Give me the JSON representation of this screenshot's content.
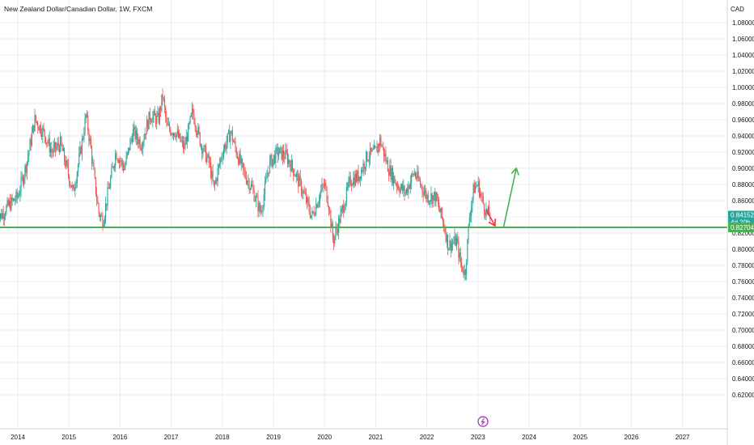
{
  "header": {
    "title": "New Zealand Dollar/Canadian Dollar, 1W, FXCM"
  },
  "chart_data": {
    "type": "candlestick",
    "title": "New Zealand Dollar/Canadian Dollar, 1W, FXCM",
    "y_unit": "CAD",
    "ylim": [
      0.61,
      1.09
    ],
    "y_ticks": [
      "1.08000",
      "1.06000",
      "1.04000",
      "1.02000",
      "1.00000",
      "0.98000",
      "0.96000",
      "0.94000",
      "0.92000",
      "0.90000",
      "0.88000",
      "0.86000",
      "0.84000",
      "0.82000",
      "0.80000",
      "0.78000",
      "0.76000",
      "0.74000",
      "0.72000",
      "0.70000",
      "0.68000",
      "0.66000",
      "0.64000",
      "0.62000"
    ],
    "x_ticks": [
      "2014",
      "2015",
      "2016",
      "2017",
      "2018",
      "2019",
      "2020",
      "2021",
      "2022",
      "2023",
      "2024",
      "2025",
      "2026",
      "2027"
    ],
    "grid": true,
    "price_series": [
      [
        "2013-08",
        0.835
      ],
      [
        "2013-11",
        0.855
      ],
      [
        "2014-01",
        0.865
      ],
      [
        "2014-03",
        0.905
      ],
      [
        "2014-05",
        0.96
      ],
      [
        "2014-07",
        0.945
      ],
      [
        "2014-09",
        0.92
      ],
      [
        "2014-11",
        0.93
      ],
      [
        "2015-01",
        0.89
      ],
      [
        "2015-02",
        0.87
      ],
      [
        "2015-03",
        0.9
      ],
      [
        "2015-04",
        0.93
      ],
      [
        "2015-05",
        0.965
      ],
      [
        "2015-06",
        0.93
      ],
      [
        "2015-07",
        0.885
      ],
      [
        "2015-08",
        0.845
      ],
      [
        "2015-09",
        0.835
      ],
      [
        "2015-10",
        0.865
      ],
      [
        "2015-12",
        0.92
      ],
      [
        "2016-02",
        0.9
      ],
      [
        "2016-04",
        0.945
      ],
      [
        "2016-06",
        0.93
      ],
      [
        "2016-08",
        0.965
      ],
      [
        "2016-10",
        0.96
      ],
      [
        "2016-11",
        0.99
      ],
      [
        "2016-12",
        0.95
      ],
      [
        "2017-02",
        0.945
      ],
      [
        "2017-04",
        0.925
      ],
      [
        "2017-05",
        0.945
      ],
      [
        "2017-06",
        0.97
      ],
      [
        "2017-08",
        0.93
      ],
      [
        "2017-10",
        0.905
      ],
      [
        "2017-11",
        0.875
      ],
      [
        "2018-01",
        0.92
      ],
      [
        "2018-03",
        0.945
      ],
      [
        "2018-04",
        0.925
      ],
      [
        "2018-06",
        0.895
      ],
      [
        "2018-08",
        0.875
      ],
      [
        "2018-09",
        0.86
      ],
      [
        "2018-10",
        0.845
      ],
      [
        "2018-12",
        0.905
      ],
      [
        "2019-02",
        0.92
      ],
      [
        "2019-04",
        0.915
      ],
      [
        "2019-06",
        0.895
      ],
      [
        "2019-08",
        0.87
      ],
      [
        "2019-09",
        0.855
      ],
      [
        "2019-10",
        0.84
      ],
      [
        "2019-12",
        0.87
      ],
      [
        "2020-01",
        0.88
      ],
      [
        "2020-02",
        0.855
      ],
      [
        "2020-03",
        0.81
      ],
      [
        "2020-05",
        0.845
      ],
      [
        "2020-07",
        0.885
      ],
      [
        "2020-09",
        0.89
      ],
      [
        "2020-11",
        0.915
      ],
      [
        "2021-01",
        0.92
      ],
      [
        "2021-02",
        0.935
      ],
      [
        "2021-04",
        0.9
      ],
      [
        "2021-06",
        0.88
      ],
      [
        "2021-08",
        0.87
      ],
      [
        "2021-10",
        0.895
      ],
      [
        "2021-12",
        0.875
      ],
      [
        "2022-01",
        0.865
      ],
      [
        "2022-03",
        0.865
      ],
      [
        "2022-05",
        0.83
      ],
      [
        "2022-06",
        0.805
      ],
      [
        "2022-08",
        0.81
      ],
      [
        "2022-09",
        0.78
      ],
      [
        "2022-10",
        0.77
      ],
      [
        "2022-11",
        0.84
      ],
      [
        "2022-12",
        0.875
      ],
      [
        "2023-01",
        0.88
      ],
      [
        "2023-02",
        0.86
      ],
      [
        "2023-03",
        0.845
      ],
      [
        "2023-04",
        0.8415
      ]
    ],
    "horizontal_line": {
      "value": 0.82704,
      "color": "#4caf50"
    },
    "price_labels": [
      {
        "value": "0.84152",
        "sub": "4d 20h",
        "color": "#26a69a"
      },
      {
        "value": "0.82704",
        "color": "#4caf50"
      }
    ],
    "arrows": [
      {
        "kind": "down",
        "color": "#f23645",
        "from": [
          "2023-03",
          0.848
        ],
        "to": [
          "2023-05",
          0.829
        ]
      },
      {
        "kind": "up",
        "color": "#4caf50",
        "from": [
          "2023-07",
          0.827
        ],
        "to": [
          "2023-10",
          0.9
        ]
      }
    ],
    "candle_colors": {
      "up": "#26a69a",
      "down": "#ef5350"
    }
  },
  "bottom_badge": {
    "name": "lightning-icon",
    "color": "#9c27b0"
  }
}
